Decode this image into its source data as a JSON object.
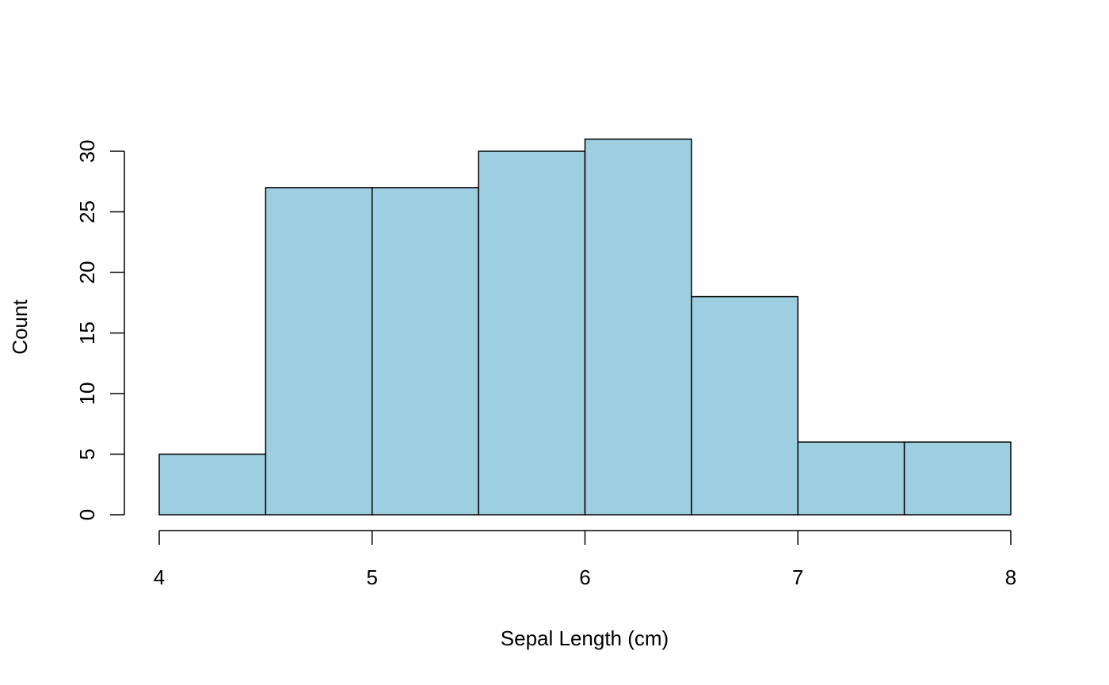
{
  "chart_data": {
    "type": "bar",
    "histogram": true,
    "bins": [
      {
        "start": 4.0,
        "end": 4.5,
        "count": 5
      },
      {
        "start": 4.5,
        "end": 5.0,
        "count": 27
      },
      {
        "start": 5.0,
        "end": 5.5,
        "count": 27
      },
      {
        "start": 5.5,
        "end": 6.0,
        "count": 30
      },
      {
        "start": 6.0,
        "end": 6.5,
        "count": 31
      },
      {
        "start": 6.5,
        "end": 7.0,
        "count": 18
      },
      {
        "start": 7.0,
        "end": 7.5,
        "count": 6
      },
      {
        "start": 7.5,
        "end": 8.0,
        "count": 6
      }
    ],
    "title": "",
    "xlabel": "Sepal Length (cm)",
    "ylabel": "Count",
    "xlim": [
      4,
      8
    ],
    "ylim": [
      0,
      30
    ],
    "xticks": [
      "4",
      "5",
      "6",
      "7",
      "8"
    ],
    "yticks": [
      "0",
      "5",
      "10",
      "15",
      "20",
      "25",
      "30"
    ],
    "bar_color": "#9ecfe0",
    "grid": false
  }
}
